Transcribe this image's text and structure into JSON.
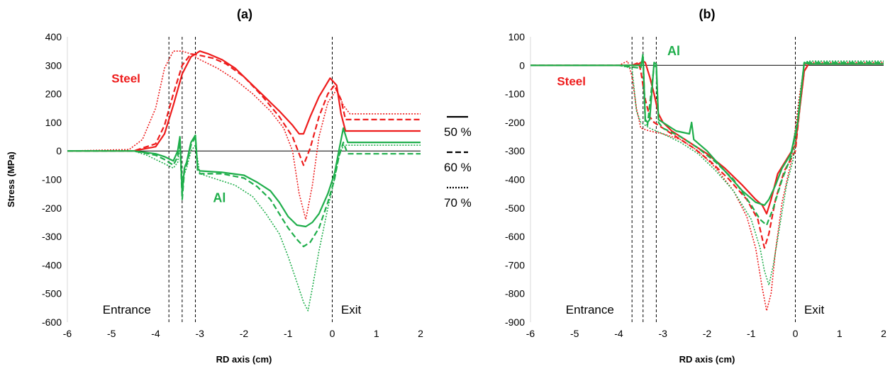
{
  "colors": {
    "steel": "#ee1c1c",
    "al": "#1fae4b",
    "axis": "#000000",
    "guide": "#000000"
  },
  "legend": [
    {
      "label": "50 %",
      "dash": "solid"
    },
    {
      "label": "60 %",
      "dash": "dashed"
    },
    {
      "label": "70 %",
      "dash": "dotted"
    }
  ],
  "chart_data": [
    {
      "type": "line",
      "title": "(a)",
      "xlabel": "RD axis (cm)",
      "ylabel": "Stress (MPa)",
      "xlim": [
        -6,
        2
      ],
      "ylim": [
        -600,
        400
      ],
      "xticks": [
        -6,
        -5,
        -4,
        -3,
        -2,
        -1,
        0,
        1,
        2
      ],
      "yticks": [
        400,
        300,
        200,
        100,
        0,
        -100,
        -200,
        -300,
        -400,
        -500,
        -600
      ],
      "vlines": [
        -3.7,
        -3.4,
        -3.1,
        0
      ],
      "annotations": [
        {
          "text": "Entrance",
          "x": -5.2,
          "y": -570
        },
        {
          "text": "Exit",
          "x": 0.2,
          "y": -570
        },
        {
          "text": "Steel",
          "x": -5.0,
          "y": 240,
          "color": "steel"
        },
        {
          "text": "Al",
          "x": -2.7,
          "y": -180,
          "color": "al"
        }
      ],
      "series": [
        {
          "name": "Steel 50 %",
          "material": "steel",
          "dash": "solid",
          "x": [
            -6,
            -4.5,
            -4.0,
            -3.8,
            -3.6,
            -3.4,
            -3.2,
            -3.0,
            -2.8,
            -2.5,
            -2.2,
            -2.0,
            -1.6,
            -1.2,
            -0.9,
            -0.75,
            -0.65,
            -0.5,
            -0.3,
            -0.05,
            0.1,
            0.2,
            0.3,
            2
          ],
          "y": [
            0,
            0,
            15,
            60,
            160,
            270,
            330,
            350,
            340,
            320,
            290,
            260,
            200,
            140,
            90,
            60,
            60,
            120,
            190,
            255,
            230,
            130,
            70,
            70
          ]
        },
        {
          "name": "Steel 60 %",
          "material": "steel",
          "dash": "dashed",
          "x": [
            -6,
            -4.5,
            -4.0,
            -3.8,
            -3.6,
            -3.4,
            -3.2,
            -3.0,
            -2.7,
            -2.4,
            -2.0,
            -1.6,
            -1.2,
            -0.9,
            -0.75,
            -0.65,
            -0.5,
            -0.3,
            -0.1,
            0.05,
            0.2,
            0.3,
            2
          ],
          "y": [
            0,
            0,
            25,
            90,
            200,
            300,
            340,
            335,
            325,
            305,
            260,
            195,
            120,
            50,
            -10,
            -50,
            10,
            120,
            200,
            230,
            180,
            110,
            110
          ]
        },
        {
          "name": "Steel 70 %",
          "material": "steel",
          "dash": "dotted",
          "x": [
            -6,
            -4.6,
            -4.3,
            -4.0,
            -3.8,
            -3.6,
            -3.4,
            -3.2,
            -3.0,
            -2.6,
            -2.2,
            -1.8,
            -1.4,
            -1.1,
            -0.9,
            -0.75,
            -0.6,
            -0.45,
            -0.3,
            -0.1,
            0.1,
            0.25,
            0.4,
            2
          ],
          "y": [
            0,
            5,
            40,
            150,
            290,
            350,
            350,
            340,
            320,
            290,
            250,
            200,
            140,
            80,
            0,
            -150,
            -240,
            -120,
            50,
            170,
            215,
            160,
            130,
            130
          ]
        },
        {
          "name": "Al 50 %",
          "material": "al",
          "dash": "solid",
          "x": [
            -6,
            -4.5,
            -4.0,
            -3.8,
            -3.6,
            -3.5,
            -3.45,
            -3.4,
            -3.35,
            -3.3,
            -3.2,
            -3.1,
            -3.05,
            -3.0,
            -2.5,
            -2.0,
            -1.7,
            -1.4,
            -1.2,
            -1.0,
            -0.8,
            -0.6,
            -0.45,
            -0.3,
            -0.1,
            0.05,
            0.15,
            0.25,
            0.35,
            2
          ],
          "y": [
            0,
            0,
            -10,
            -20,
            -35,
            0,
            50,
            -150,
            -60,
            -40,
            30,
            55,
            -60,
            -70,
            -75,
            -85,
            -110,
            -140,
            -180,
            -230,
            -260,
            -265,
            -250,
            -220,
            -150,
            -80,
            0,
            80,
            30,
            30
          ]
        },
        {
          "name": "Al 60 %",
          "material": "al",
          "dash": "dashed",
          "x": [
            -6,
            -4.5,
            -4.0,
            -3.8,
            -3.6,
            -3.5,
            -3.45,
            -3.4,
            -3.35,
            -3.3,
            -3.2,
            -3.1,
            -3.05,
            -3.0,
            -2.5,
            -2.0,
            -1.7,
            -1.4,
            -1.2,
            -1.0,
            -0.8,
            -0.65,
            -0.5,
            -0.3,
            -0.1,
            0.05,
            0.15,
            0.25,
            0.35,
            2
          ],
          "y": [
            0,
            0,
            -15,
            -30,
            -50,
            -20,
            40,
            -170,
            -70,
            -50,
            20,
            50,
            -70,
            -80,
            -80,
            -95,
            -125,
            -170,
            -220,
            -270,
            -310,
            -335,
            -320,
            -270,
            -180,
            -100,
            -20,
            30,
            -10,
            -10
          ]
        },
        {
          "name": "Al 70 %",
          "material": "al",
          "dash": "dotted",
          "x": [
            -6,
            -4.5,
            -4.2,
            -4.0,
            -3.8,
            -3.6,
            -3.5,
            -3.45,
            -3.4,
            -3.3,
            -3.2,
            -3.1,
            -3.0,
            -2.6,
            -2.2,
            -1.8,
            -1.5,
            -1.2,
            -1.0,
            -0.8,
            -0.65,
            -0.55,
            -0.45,
            -0.3,
            -0.1,
            0.05,
            0.15,
            0.25,
            0.4,
            2
          ],
          "y": [
            0,
            0,
            -15,
            -30,
            -45,
            -60,
            -40,
            20,
            -100,
            -60,
            0,
            20,
            -80,
            -100,
            -120,
            -160,
            -220,
            -290,
            -370,
            -460,
            -530,
            -560,
            -480,
            -350,
            -200,
            -100,
            -20,
            20,
            20,
            20
          ]
        }
      ]
    },
    {
      "type": "line",
      "title": "(b)",
      "xlabel": "RD axis (cm)",
      "ylabel": "",
      "xlim": [
        -6,
        2
      ],
      "ylim": [
        -900,
        100
      ],
      "xticks": [
        -6,
        -5,
        -4,
        -3,
        -2,
        -1,
        0,
        1,
        2
      ],
      "yticks": [
        100,
        0,
        -100,
        -200,
        -300,
        -400,
        -500,
        -600,
        -700,
        -800,
        -900
      ],
      "vlines": [
        -3.7,
        -3.45,
        -3.15,
        0
      ],
      "annotations": [
        {
          "text": "Entrance",
          "x": -5.2,
          "y": -870
        },
        {
          "text": "Exit",
          "x": 0.2,
          "y": -870
        },
        {
          "text": "Steel",
          "x": -5.4,
          "y": -70,
          "color": "steel"
        },
        {
          "text": "Al",
          "x": -2.9,
          "y": 35,
          "color": "al"
        }
      ],
      "series": [
        {
          "name": "Steel 50 %",
          "material": "steel",
          "dash": "solid",
          "x": [
            -6,
            -4,
            -3.6,
            -3.45,
            -3.4,
            -3.3,
            -3.2,
            -3.1,
            -3.0,
            -2.8,
            -2.5,
            -2.0,
            -1.6,
            -1.2,
            -0.9,
            -0.75,
            -0.65,
            -0.55,
            -0.4,
            -0.2,
            0,
            0.1,
            0.2,
            0.3,
            2
          ],
          "y": [
            0,
            0,
            0,
            15,
            10,
            -40,
            -100,
            -170,
            -200,
            -230,
            -260,
            -310,
            -360,
            -420,
            -470,
            -490,
            -520,
            -470,
            -380,
            -330,
            -280,
            -150,
            -20,
            5,
            5
          ]
        },
        {
          "name": "Steel 60 %",
          "material": "steel",
          "dash": "dashed",
          "x": [
            -6,
            -4,
            -3.7,
            -3.55,
            -3.5,
            -3.4,
            -3.3,
            -3.2,
            -3.0,
            -2.7,
            -2.3,
            -1.9,
            -1.5,
            -1.1,
            -0.85,
            -0.7,
            -0.6,
            -0.45,
            -0.25,
            0,
            0.1,
            0.2,
            0.3,
            2
          ],
          "y": [
            0,
            0,
            0,
            10,
            -20,
            -120,
            -180,
            -200,
            -220,
            -250,
            -290,
            -340,
            -400,
            -470,
            -540,
            -640,
            -590,
            -470,
            -370,
            -300,
            -150,
            -20,
            5,
            5
          ]
        },
        {
          "name": "Steel 70 %",
          "material": "steel",
          "dash": "dotted",
          "x": [
            -6,
            -4,
            -3.8,
            -3.7,
            -3.6,
            -3.5,
            -3.3,
            -3.0,
            -2.6,
            -2.2,
            -1.8,
            -1.4,
            -1.1,
            -0.9,
            -0.75,
            -0.65,
            -0.55,
            -0.45,
            -0.3,
            -0.1,
            0.1,
            0.2,
            0.3,
            2
          ],
          "y": [
            0,
            0,
            15,
            -40,
            -150,
            -220,
            -230,
            -240,
            -260,
            -300,
            -360,
            -440,
            -530,
            -640,
            -780,
            -860,
            -800,
            -650,
            -480,
            -340,
            -100,
            0,
            10,
            10
          ]
        },
        {
          "name": "Al 50 %",
          "material": "al",
          "dash": "solid",
          "x": [
            -6,
            -4,
            -3.5,
            -3.45,
            -3.4,
            -3.35,
            -3.3,
            -3.2,
            -3.15,
            -3.1,
            -3.0,
            -2.7,
            -2.4,
            -2.35,
            -2.3,
            -2.0,
            -1.6,
            -1.2,
            -0.9,
            -0.7,
            -0.6,
            -0.45,
            -0.3,
            -0.1,
            0.05,
            0.2,
            0.3,
            2
          ],
          "y": [
            0,
            0,
            0,
            30,
            -190,
            -200,
            -190,
            10,
            5,
            -190,
            -200,
            -230,
            -240,
            -200,
            -260,
            -300,
            -370,
            -440,
            -480,
            -490,
            -470,
            -420,
            -360,
            -310,
            -200,
            10,
            5,
            5
          ]
        },
        {
          "name": "Al 60 %",
          "material": "al",
          "dash": "dashed",
          "x": [
            -6,
            -4,
            -3.5,
            -3.45,
            -3.4,
            -3.35,
            -3.2,
            -3.15,
            -3.1,
            -3.0,
            -2.6,
            -2.2,
            -1.8,
            -1.4,
            -1.0,
            -0.8,
            -0.65,
            -0.5,
            -0.3,
            -0.1,
            0.05,
            0.2,
            0.3,
            2
          ],
          "y": [
            0,
            0,
            -10,
            40,
            -200,
            -210,
            0,
            -5,
            -200,
            -220,
            -250,
            -290,
            -340,
            -400,
            -490,
            -540,
            -560,
            -500,
            -400,
            -320,
            -200,
            10,
            10,
            10
          ]
        },
        {
          "name": "Al 70 %",
          "material": "al",
          "dash": "dotted",
          "x": [
            -6,
            -4,
            -3.7,
            -3.6,
            -3.5,
            -3.3,
            -3.0,
            -2.6,
            -2.2,
            -1.8,
            -1.4,
            -1.0,
            -0.8,
            -0.7,
            -0.6,
            -0.5,
            -0.35,
            -0.2,
            -0.05,
            0.1,
            0.2,
            0.3,
            2
          ],
          "y": [
            0,
            0,
            -10,
            -160,
            -200,
            -220,
            -240,
            -270,
            -310,
            -370,
            -440,
            -540,
            -640,
            -720,
            -770,
            -700,
            -560,
            -420,
            -330,
            -150,
            10,
            15,
            15
          ]
        }
      ]
    }
  ]
}
